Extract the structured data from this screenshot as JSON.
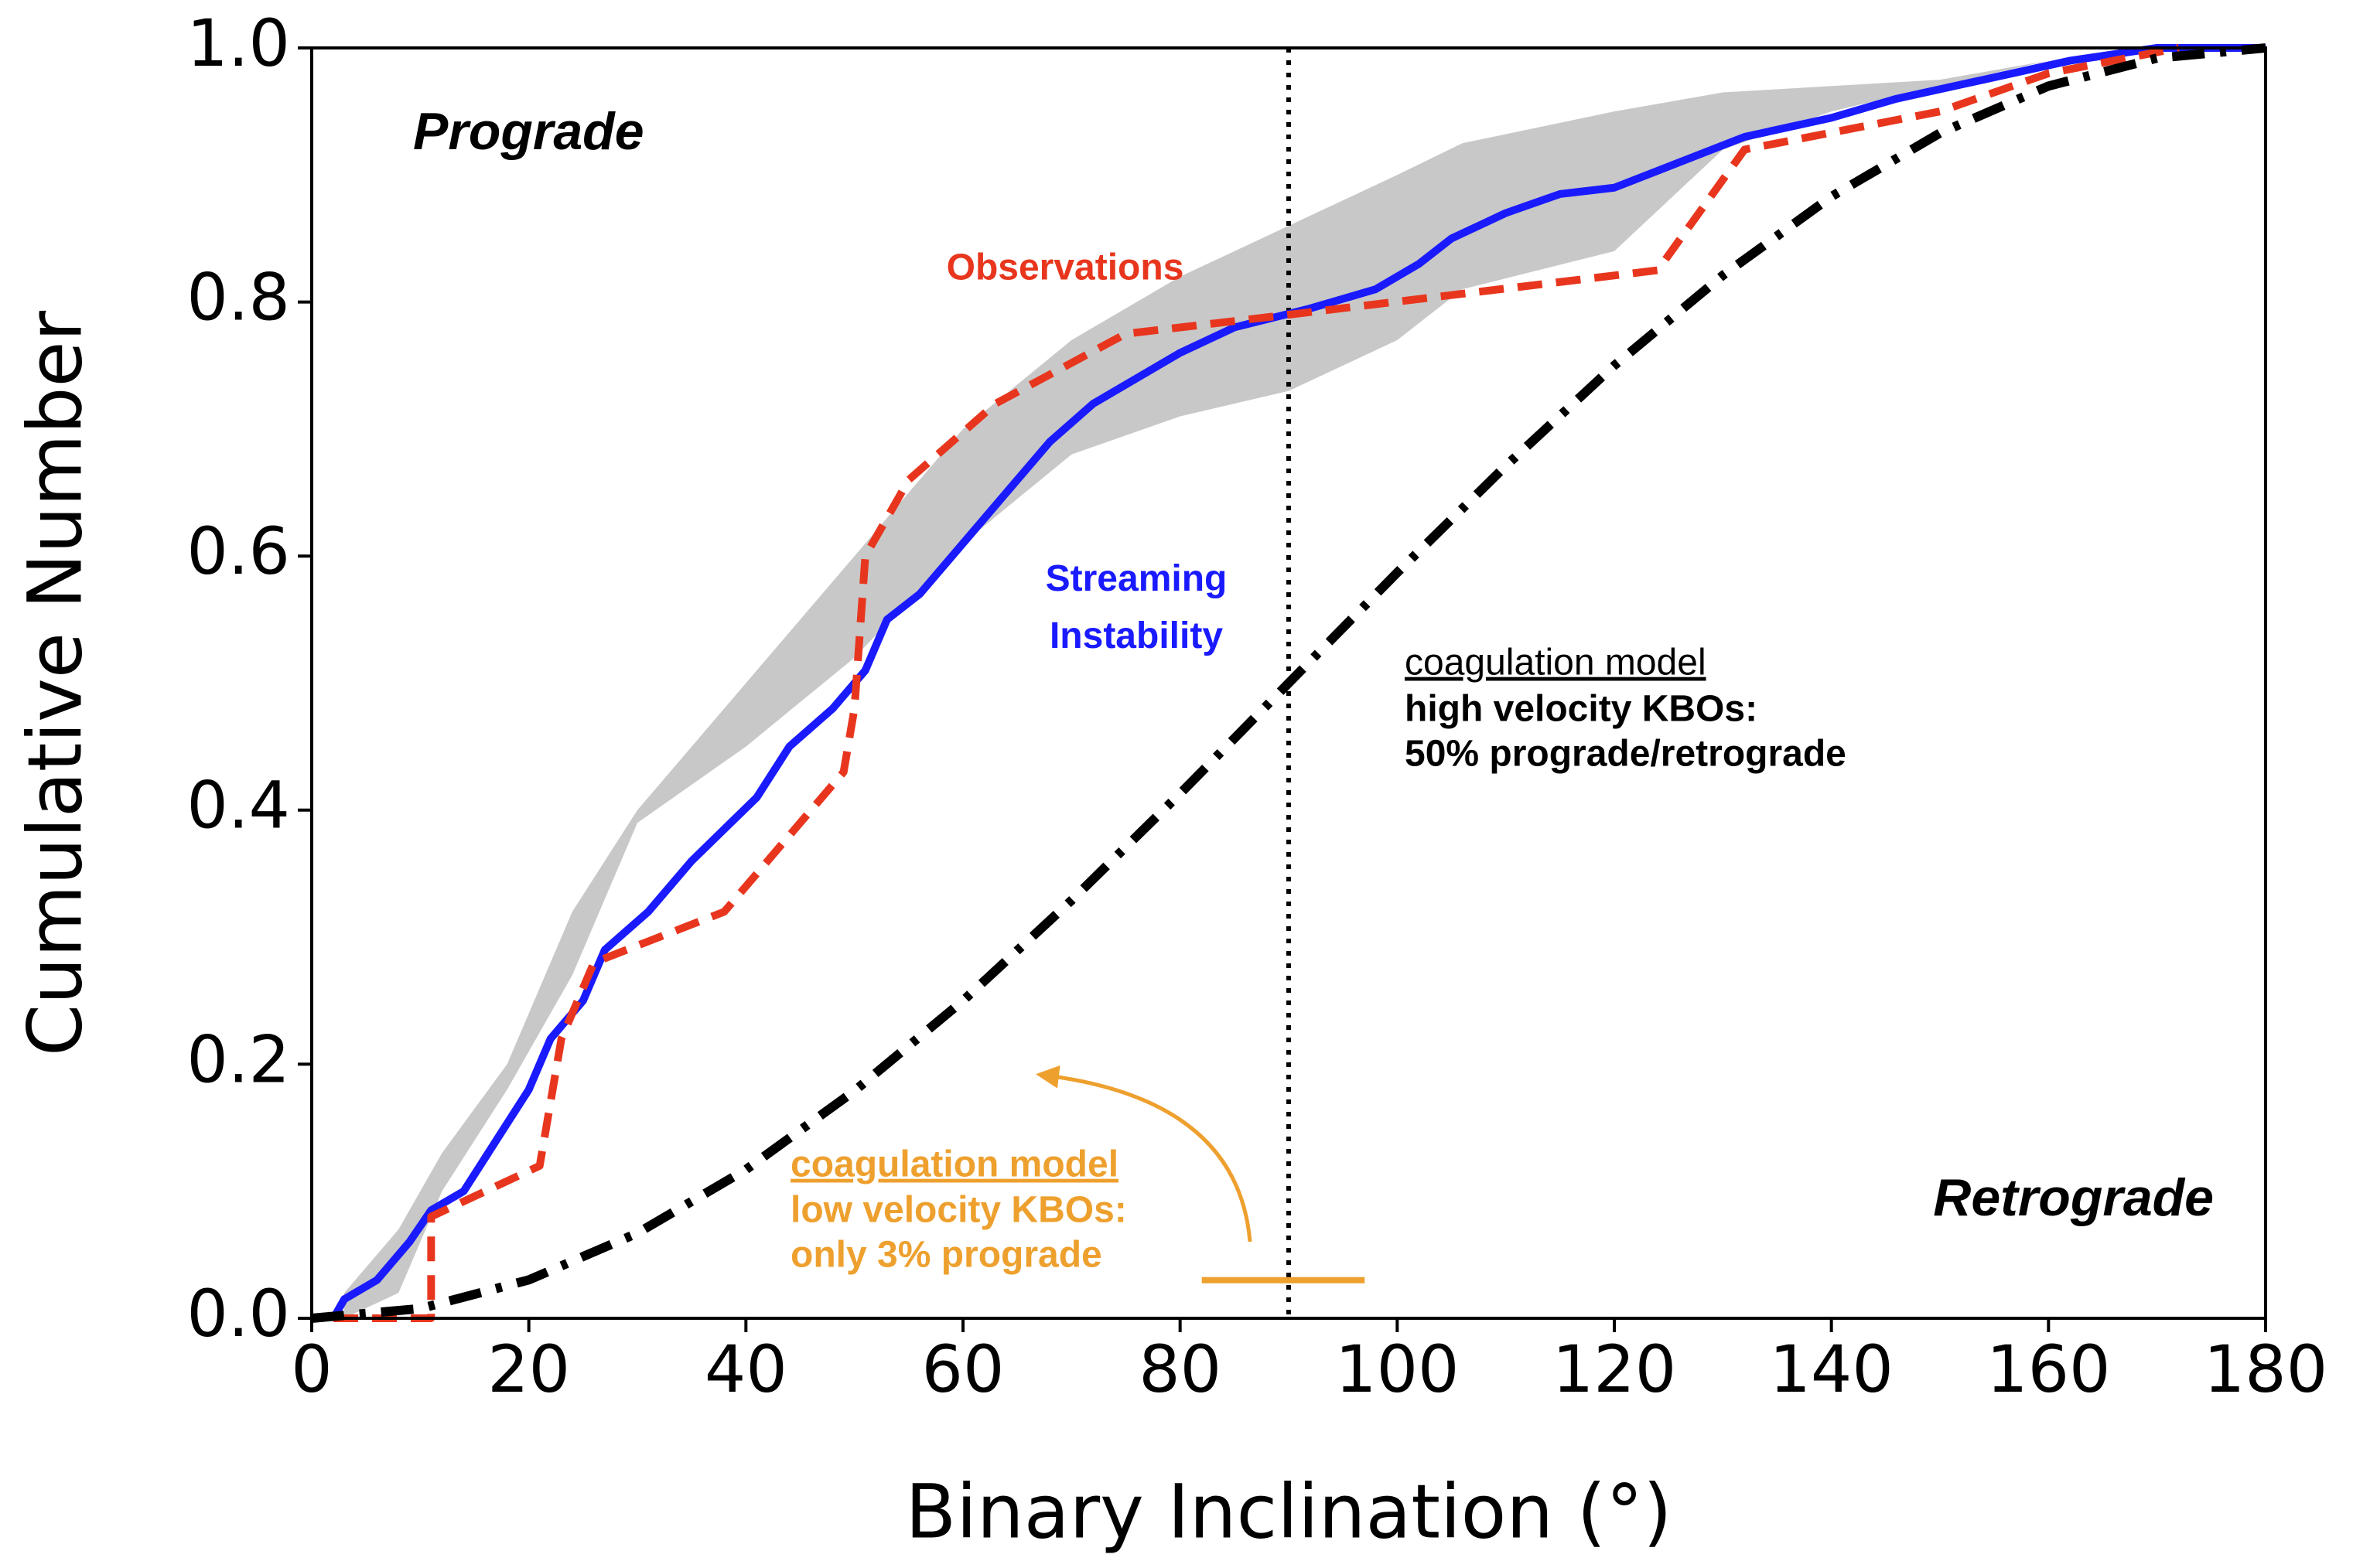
{
  "chart_data": {
    "type": "line",
    "xlabel": "Binary Inclination (°)",
    "ylabel": "Cumulative Number",
    "xlim": [
      0,
      180
    ],
    "ylim": [
      0,
      1
    ],
    "xticks": [
      0,
      20,
      40,
      60,
      80,
      100,
      120,
      140,
      160,
      180
    ],
    "yticks": [
      {
        "value": 0,
        "label": "0.0"
      },
      {
        "value": 0.2,
        "label": "0.2"
      },
      {
        "value": 0.4,
        "label": "0.4"
      },
      {
        "value": 0.6,
        "label": "0.6"
      },
      {
        "value": 0.8,
        "label": "0.8"
      },
      {
        "value": 1,
        "label": "1.0"
      }
    ],
    "band": {
      "color": "#c8c8c8",
      "x": [
        3,
        8,
        12,
        18,
        24,
        30,
        40,
        50,
        60,
        70,
        80,
        90,
        100,
        106,
        120,
        130,
        140,
        150,
        160,
        170
      ],
      "upper": [
        0.02,
        0.07,
        0.13,
        0.2,
        0.32,
        0.4,
        0.5,
        0.6,
        0.7,
        0.77,
        0.82,
        0.86,
        0.9,
        0.925,
        0.95,
        0.965,
        0.97,
        0.975,
        0.99,
        1.0
      ],
      "lower": [
        0,
        0.02,
        0.1,
        0.18,
        0.27,
        0.39,
        0.45,
        0.52,
        0.61,
        0.68,
        0.71,
        0.73,
        0.77,
        0.81,
        0.84,
        0.92,
        0.95,
        0.97,
        0.99,
        1.0
      ]
    },
    "series": [
      {
        "name": "Streaming Instability",
        "color": "#1a1aff",
        "style": "solid",
        "x": [
          2,
          3,
          6,
          9,
          11,
          14,
          17,
          20,
          22,
          25,
          27,
          31,
          35,
          38,
          41,
          44,
          48,
          51,
          53,
          56,
          60,
          64,
          68,
          72,
          76,
          80,
          85,
          92,
          98,
          102,
          105,
          110,
          115,
          120,
          126,
          132,
          140,
          146,
          154,
          162,
          170,
          180
        ],
        "values": [
          0,
          0.015,
          0.03,
          0.06,
          0.085,
          0.1,
          0.14,
          0.18,
          0.22,
          0.25,
          0.29,
          0.32,
          0.36,
          0.385,
          0.41,
          0.45,
          0.48,
          0.51,
          0.55,
          0.57,
          0.61,
          0.65,
          0.69,
          0.72,
          0.74,
          0.76,
          0.78,
          0.795,
          0.81,
          0.83,
          0.85,
          0.87,
          0.885,
          0.89,
          0.91,
          0.93,
          0.945,
          0.96,
          0.975,
          0.99,
          1.0,
          1.0
        ]
      },
      {
        "name": "Observations",
        "color": "#e8361e",
        "style": "dashed",
        "x": [
          2,
          11,
          11,
          21,
          23,
          26,
          38,
          49,
          50,
          51,
          55,
          63,
          75,
          90,
          124,
          132,
          150,
          160,
          172
        ],
        "values": [
          0,
          0,
          0.08,
          0.12,
          0.22,
          0.28,
          0.32,
          0.43,
          0.48,
          0.6,
          0.66,
          0.72,
          0.775,
          0.79,
          0.825,
          0.92,
          0.95,
          0.98,
          1.0
        ]
      },
      {
        "color": "#000000",
        "style": "dashdot",
        "x": [
          0,
          10,
          20,
          30,
          40,
          50,
          60,
          70,
          80,
          90,
          100,
          110,
          120,
          130,
          140,
          150,
          160,
          170,
          180
        ],
        "values": [
          0,
          0.0076,
          0.0302,
          0.067,
          0.117,
          0.179,
          0.25,
          0.329,
          0.413,
          0.5,
          0.587,
          0.671,
          0.75,
          0.821,
          0.883,
          0.933,
          0.97,
          0.992,
          1.0
        ]
      }
    ],
    "vline": 90,
    "hline": {
      "y": 0.03,
      "xmin": 82,
      "xmax": 97,
      "color": "#eea02e"
    },
    "annotations": {
      "prograde": "Prograde",
      "retrograde": "Retrograde",
      "high_velocity": [
        "coagulation model",
        "high velocity KBOs:",
        "50% prograde/retrograde"
      ],
      "low_velocity": [
        "coagulation model",
        "low velocity KBOs:",
        "only 3% prograde"
      ]
    }
  }
}
